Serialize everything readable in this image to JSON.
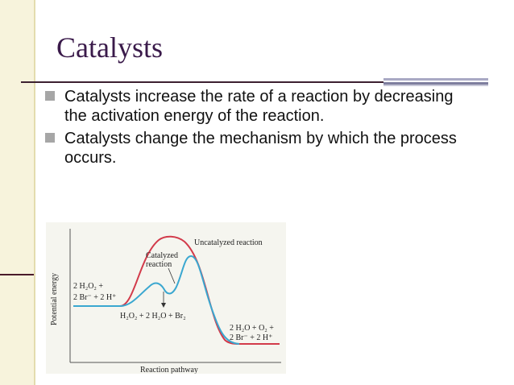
{
  "slide": {
    "title": "Catalysts",
    "bullets": [
      "Catalysts increase the rate of a reaction by decreasing the activation energy of the reaction.",
      "Catalysts change the mechanism by which the process occurs."
    ],
    "bullet_color": "#a6a6a6",
    "title_color": "#3a1a4a"
  },
  "figure": {
    "y_axis_label": "Potential energy",
    "x_axis_label": "Reaction pathway",
    "uncatalyzed_label": "Uncatalyzed reaction",
    "catalyzed_label_line1": "Catalyzed",
    "catalyzed_label_line2": "reaction",
    "reactants_line1": "2 H₂O₂ +",
    "reactants_line2": "2 Br⁻ + 2 H⁺",
    "intermediate": "H₂O₂ + 2 H₂O + Br₂",
    "products_line1": "2 H₂O + O₂ +",
    "products_line2": "2 Br⁻ + 2 H⁺",
    "uncatalyzed_color": "#d23a4a",
    "catalyzed_color": "#3aa7d0"
  }
}
